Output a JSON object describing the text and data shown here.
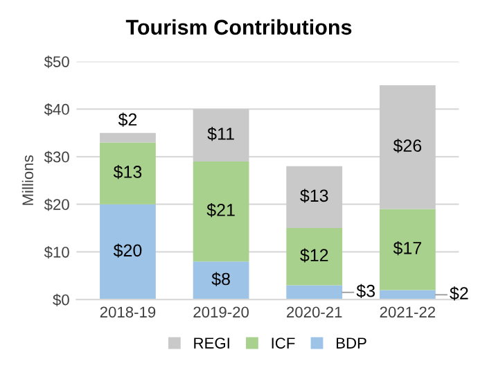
{
  "chart_data": {
    "type": "bar",
    "title": "Tourism Contributions",
    "ylabel": "Millions",
    "stacked": true,
    "categories": [
      "2018-19",
      "2019-20",
      "2020-21",
      "2021-22"
    ],
    "series": [
      {
        "name": "BDP",
        "color": "#9dc3e6",
        "values": [
          20,
          8,
          3,
          2
        ],
        "value_labels": [
          "$20",
          "$8",
          "$3",
          "$2"
        ]
      },
      {
        "name": "ICF",
        "color": "#a9d18e",
        "values": [
          13,
          21,
          12,
          17
        ],
        "value_labels": [
          "$13",
          "$21",
          "$12",
          "$17"
        ]
      },
      {
        "name": "REGI",
        "color": "#c9c9c9",
        "values": [
          2,
          11,
          13,
          26
        ],
        "value_labels": [
          "$2",
          "$11",
          "$13",
          "$26"
        ]
      }
    ],
    "ylim": [
      0,
      50
    ],
    "yticks": [
      {
        "value": 0,
        "label": "$0"
      },
      {
        "value": 10,
        "label": "$10"
      },
      {
        "value": 20,
        "label": "$20"
      },
      {
        "value": 30,
        "label": "$30"
      },
      {
        "value": 40,
        "label": "$40"
      },
      {
        "value": 50,
        "label": "$50"
      }
    ],
    "grid": "y",
    "legend": "bottom"
  }
}
